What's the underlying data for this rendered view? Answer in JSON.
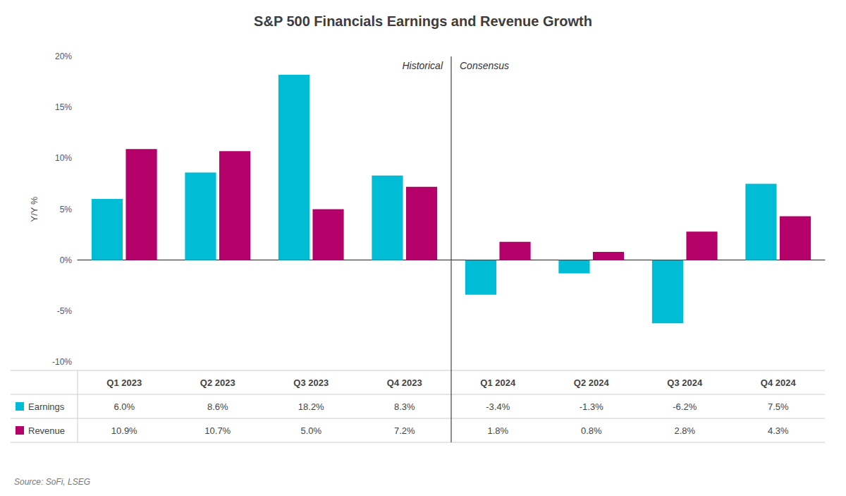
{
  "chart_data": {
    "type": "bar",
    "title": "S&P 500 Financials Earnings and Revenue Growth",
    "ylabel": "Y/Y %",
    "categories": [
      "Q1 2023",
      "Q2 2023",
      "Q3 2023",
      "Q4 2023",
      "Q1 2024",
      "Q2 2024",
      "Q3 2024",
      "Q4 2024"
    ],
    "series": [
      {
        "name": "Earnings",
        "color": "#00BCD4",
        "values": [
          6.0,
          8.6,
          18.2,
          8.3,
          -3.4,
          -1.3,
          -6.2,
          7.5
        ],
        "value_labels": [
          "6.0%",
          "8.6%",
          "18.2%",
          "8.3%",
          "-3.4%",
          "-1.3%",
          "-6.2%",
          "7.5%"
        ]
      },
      {
        "name": "Revenue",
        "color": "#B5006A",
        "values": [
          10.9,
          10.7,
          5.0,
          7.2,
          1.8,
          0.8,
          2.8,
          4.3
        ],
        "value_labels": [
          "10.9%",
          "10.7%",
          "5.0%",
          "7.2%",
          "1.8%",
          "0.8%",
          "2.8%",
          "4.3%"
        ]
      }
    ],
    "ylim": [
      -10,
      20
    ],
    "yticks": [
      {
        "value": -10,
        "label": "-10%"
      },
      {
        "value": -5,
        "label": "-5%"
      },
      {
        "value": 0,
        "label": "0%"
      },
      {
        "value": 5,
        "label": "5%"
      },
      {
        "value": 10,
        "label": "10%"
      },
      {
        "value": 15,
        "label": "15%"
      },
      {
        "value": 20,
        "label": "20%"
      }
    ],
    "annotations": [
      "Historical",
      "Consensus"
    ],
    "source": "Source: SoFi, LSEG",
    "grid": false,
    "data_labels": true
  }
}
